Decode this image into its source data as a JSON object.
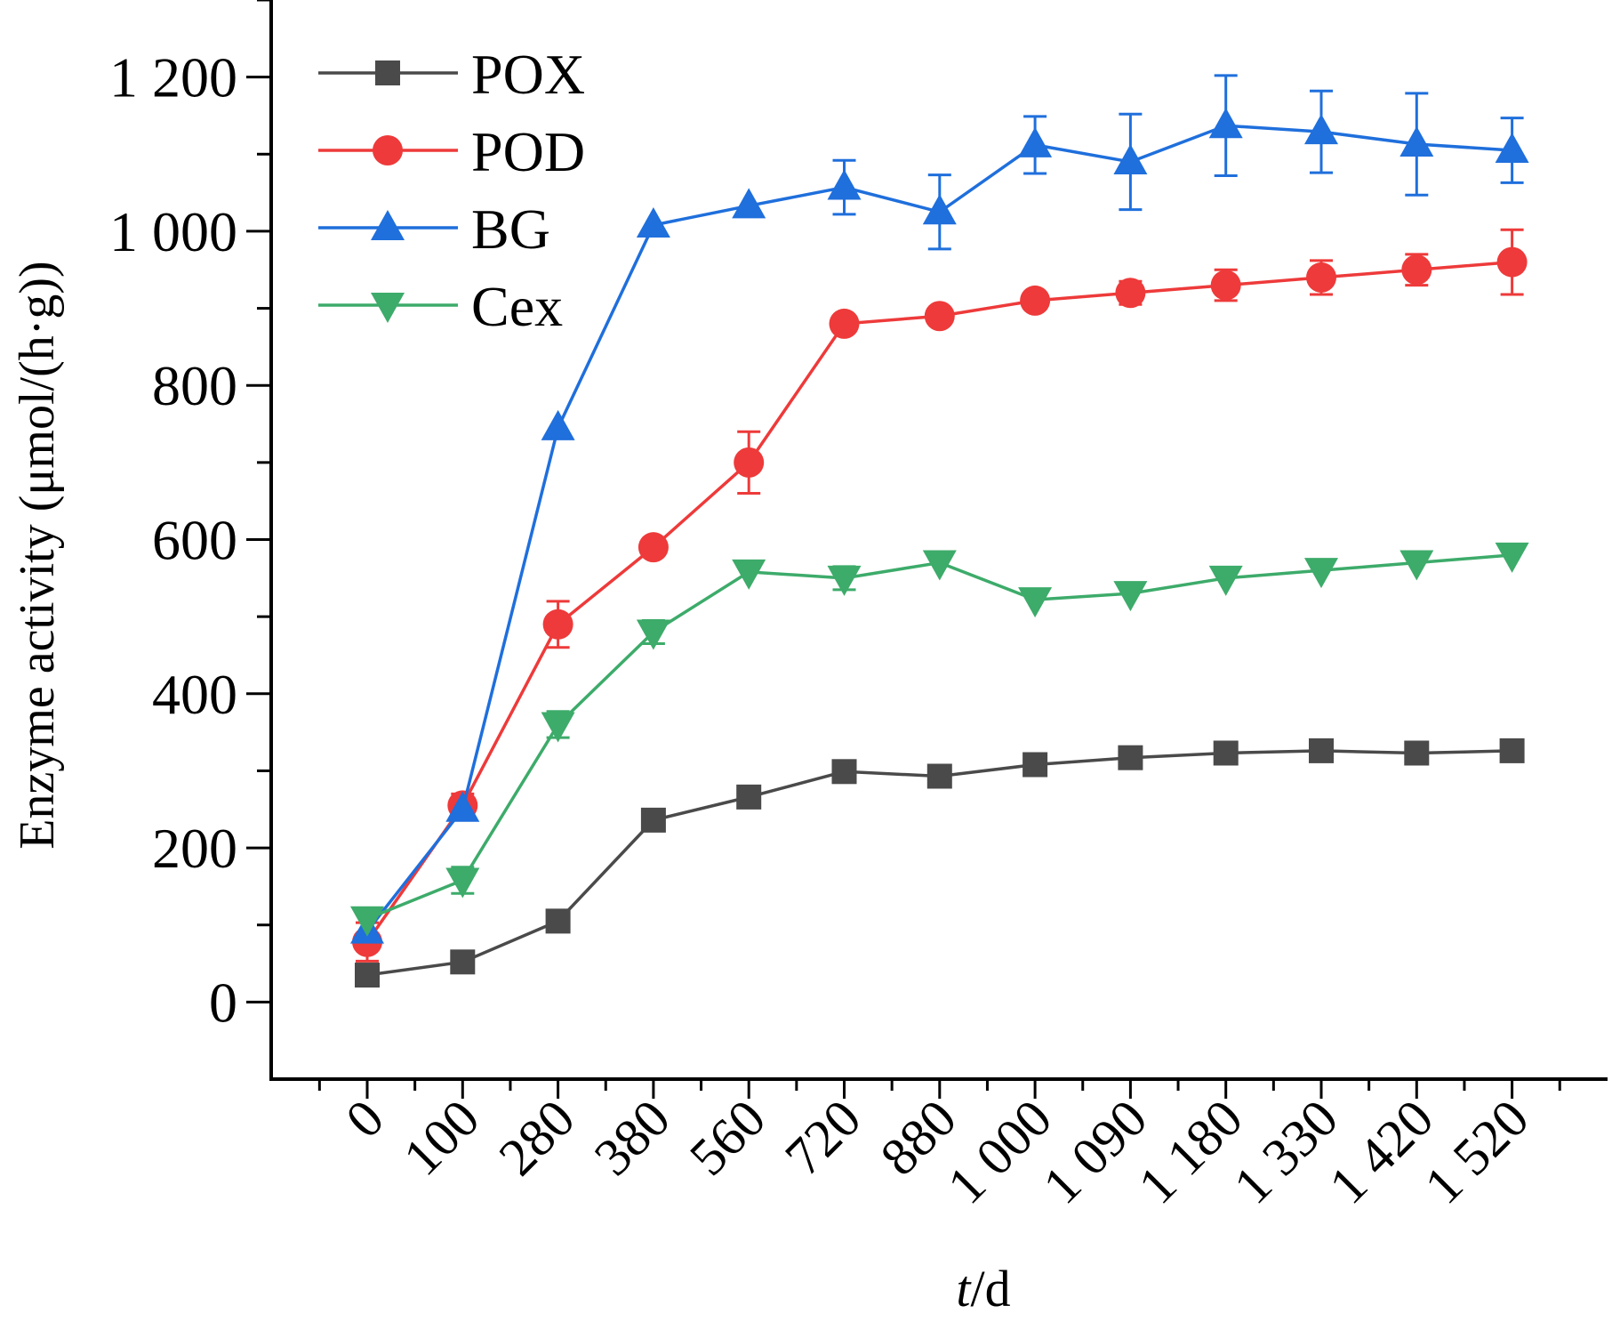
{
  "chart_data": {
    "type": "line",
    "title": "",
    "xlabel_italic": "t",
    "xlabel_rest": "/d",
    "ylabel": "Enzyme activity (μmol/(h·g))",
    "categories": [
      "0",
      "100",
      "280",
      "380",
      "560",
      "720",
      "880",
      "1 000",
      "1 090",
      "1 180",
      "1 330",
      "1 420",
      "1 520"
    ],
    "ylim": [
      -100,
      1300
    ],
    "yticks": [
      0,
      200,
      400,
      600,
      800,
      1000,
      1200
    ],
    "ytick_labels": [
      "0",
      "200",
      "400",
      "600",
      "800",
      "1 000",
      "1 200"
    ],
    "grid": false,
    "legend_position": "top-left",
    "series": [
      {
        "name": "POX",
        "color": "#4a4a4a",
        "marker": "square",
        "values": [
          35,
          52,
          105,
          236,
          266,
          299,
          293,
          308,
          317,
          323,
          326,
          323,
          326
        ],
        "errors": [
          0,
          0,
          0,
          0,
          0,
          0,
          0,
          0,
          0,
          0,
          0,
          0,
          0
        ]
      },
      {
        "name": "POD",
        "color": "#ee3a3a",
        "marker": "circle",
        "values": [
          78,
          255,
          490,
          590,
          700,
          880,
          890,
          910,
          920,
          930,
          940,
          950,
          960
        ],
        "errors": [
          25,
          15,
          30,
          0,
          40,
          0,
          0,
          0,
          15,
          20,
          22,
          20,
          42
        ]
      },
      {
        "name": "BG",
        "color": "#1f6fdc",
        "marker": "triangle-up",
        "values": [
          92,
          250,
          745,
          1008,
          1033,
          1057,
          1025,
          1112,
          1090,
          1137,
          1129,
          1113,
          1105
        ],
        "errors": [
          0,
          0,
          0,
          0,
          0,
          35,
          48,
          37,
          62,
          65,
          53,
          66,
          42
        ]
      },
      {
        "name": "Cex",
        "color": "#3dab6a",
        "marker": "triangle-down",
        "values": [
          108,
          158,
          360,
          480,
          558,
          550,
          570,
          522,
          530,
          550,
          560,
          570,
          580
        ],
        "errors": [
          0,
          17,
          17,
          15,
          0,
          15,
          0,
          0,
          0,
          0,
          0,
          0,
          0
        ]
      }
    ]
  }
}
